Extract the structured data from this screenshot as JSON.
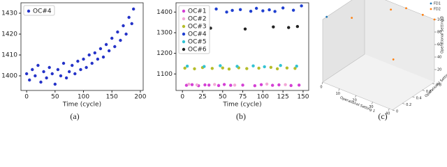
{
  "chart_data": [
    {
      "type": "scatter",
      "caption": "(a)",
      "x_label": "Time (cycle)",
      "legend": "upper left",
      "xlim": [
        -10,
        205
      ],
      "ylim": [
        1393,
        1435
      ],
      "xticks": [
        0,
        50,
        100,
        150,
        200
      ],
      "yticks": [
        1400,
        1410,
        1420,
        1430
      ],
      "series": [
        {
          "name": "OC#4",
          "color": "#2533c8",
          "x": [
            0,
            5,
            10,
            15,
            20,
            25,
            30,
            35,
            40,
            45,
            50,
            55,
            60,
            65,
            70,
            75,
            80,
            85,
            90,
            95,
            100,
            105,
            110,
            115,
            120,
            125,
            130,
            135,
            140,
            145,
            150,
            155,
            160,
            165,
            170,
            175,
            180,
            185,
            188
          ],
          "values": [
            1401,
            1398,
            1403,
            1400,
            1405,
            1397,
            1402,
            1399,
            1404,
            1401,
            1396,
            1403,
            1400,
            1406,
            1399,
            1402,
            1405,
            1401,
            1407,
            1403,
            1408,
            1404,
            1410,
            1406,
            1411,
            1408,
            1413,
            1409,
            1415,
            1412,
            1418,
            1414,
            1421,
            1417,
            1424,
            1420,
            1428,
            1425,
            1432
          ]
        }
      ]
    },
    {
      "type": "scatter",
      "caption": "(b)",
      "x_label": "Time (cycle)",
      "legend": "upper left",
      "xlim": [
        -8,
        157
      ],
      "ylim": [
        1020,
        1445
      ],
      "xticks": [
        0,
        25,
        50,
        75,
        100,
        125,
        150
      ],
      "yticks": [
        1100,
        1200,
        1300,
        1400
      ],
      "series": [
        {
          "name": "OC#1",
          "color": "#d43fd4",
          "x": [
            5,
            12,
            20,
            28,
            33,
            45,
            52,
            60,
            75,
            90,
            98,
            112,
            120,
            135,
            145
          ],
          "values": [
            1045,
            1048,
            1043,
            1047,
            1046,
            1044,
            1049,
            1045,
            1046,
            1043,
            1048,
            1045,
            1047,
            1044,
            1046
          ]
        },
        {
          "name": "OC#2",
          "color": "#f2a7d6",
          "x": [
            8,
            18,
            40,
            65,
            105,
            128
          ],
          "values": [
            1050,
            1047,
            1049,
            1046,
            1051,
            1048
          ]
        },
        {
          "name": "OC#3",
          "color": "#b5bd2a",
          "x": [
            3,
            15,
            25,
            37,
            50,
            58,
            70,
            80,
            95,
            110,
            118,
            130,
            140
          ],
          "values": [
            1128,
            1125,
            1131,
            1127,
            1129,
            1124,
            1130,
            1126,
            1128,
            1132,
            1125,
            1129,
            1127
          ]
        },
        {
          "name": "OC#4",
          "color": "#1f3fd0",
          "x": [
            2,
            10,
            22,
            30,
            42,
            55,
            62,
            72,
            85,
            92,
            100,
            108,
            115,
            125,
            138,
            148
          ],
          "values": [
            1405,
            1398,
            1410,
            1402,
            1415,
            1400,
            1408,
            1412,
            1404,
            1418,
            1406,
            1411,
            1403,
            1420,
            1409,
            1430
          ]
        },
        {
          "name": "OC#5",
          "color": "#33c3d3",
          "x": [
            6,
            27,
            47,
            68,
            88,
            102,
            122,
            142
          ],
          "values": [
            1138,
            1136,
            1140,
            1137,
            1139,
            1135,
            1141,
            1138
          ]
        },
        {
          "name": "OC#6",
          "color": "#222222",
          "x": [
            35,
            78,
            113,
            132,
            143
          ],
          "values": [
            1322,
            1318,
            1328,
            1325,
            1330
          ]
        }
      ]
    },
    {
      "type": "scatter3d",
      "caption": "(c)",
      "x_label": "Operational Setting 1",
      "y_label": "Operational Setting 2",
      "z_label": "Operational Setting 3",
      "legend": "upper right",
      "xlim": [
        0,
        42
      ],
      "ylim": [
        0,
        0.84
      ],
      "zlim": [
        0,
        100
      ],
      "xticks": [
        0,
        10,
        20,
        30,
        40
      ],
      "yticks": [
        0,
        0.2,
        0.4,
        0.6,
        0.8
      ],
      "zticks": [
        20,
        40,
        60,
        80,
        100
      ],
      "series": [
        {
          "name": "FD1",
          "color": "#1f77b4",
          "x": [
            0
          ],
          "y": [
            0.08
          ],
          "z": [
            100
          ]
        },
        {
          "name": "FD2",
          "color": "#ff7f0e",
          "x": [
            10,
            20,
            25,
            35,
            42,
            35
          ],
          "y": [
            0.25,
            0.7,
            0.84,
            0.84,
            0.84,
            0.25
          ],
          "z": [
            100,
            100,
            100,
            100,
            100,
            60
          ]
        }
      ]
    }
  ]
}
